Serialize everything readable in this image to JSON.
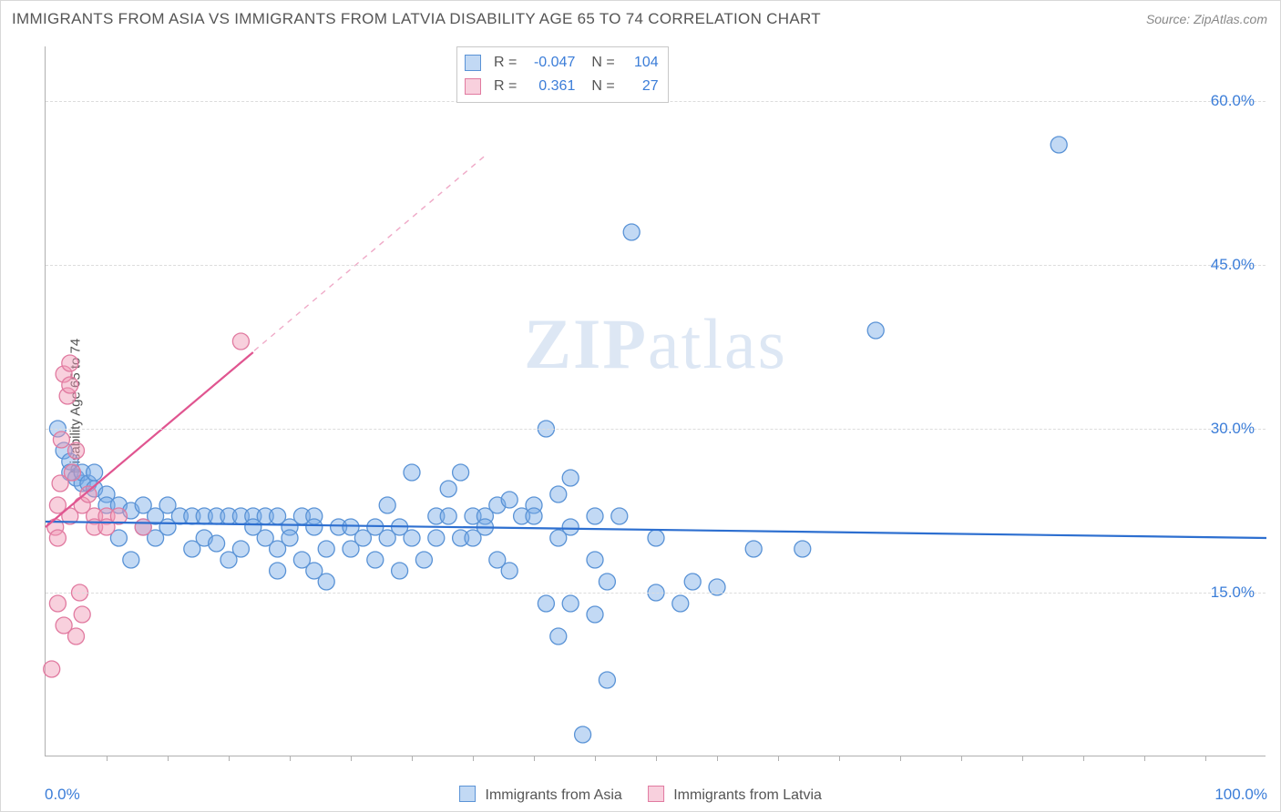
{
  "chart": {
    "type": "scatter",
    "title": "IMMIGRANTS FROM ASIA VS IMMIGRANTS FROM LATVIA DISABILITY AGE 65 TO 74 CORRELATION CHART",
    "source": "Source: ZipAtlas.com",
    "ylabel": "Disability Age 65 to 74",
    "watermark": "ZIPatlas",
    "background_color": "#ffffff",
    "grid_color": "#dcdcdc",
    "axis_color": "#b0b0b0",
    "text_color": "#555555",
    "value_color": "#3b7dd8",
    "xlim": [
      0,
      100
    ],
    "ylim": [
      0,
      65
    ],
    "x_end_labels": [
      "0.0%",
      "100.0%"
    ],
    "y_ticks": [
      15,
      30,
      45,
      60
    ],
    "y_tick_labels": [
      "15.0%",
      "30.0%",
      "45.0%",
      "60.0%"
    ],
    "x_minor_tick_step": 5,
    "marker_radius": 9,
    "marker_stroke_width": 1.3,
    "trend_line_width": 2.2,
    "series": [
      {
        "name": "Immigrants from Asia",
        "fill": "rgba(120,170,230,0.45)",
        "stroke": "#5a93d6",
        "line_color": "#2d6fd0",
        "r": -0.047,
        "n": 104,
        "trend": {
          "x1": 0,
          "y1": 21.5,
          "x2": 100,
          "y2": 20.0
        },
        "points": [
          [
            1,
            30
          ],
          [
            1.5,
            28
          ],
          [
            2,
            27
          ],
          [
            2,
            26
          ],
          [
            2.5,
            25.5
          ],
          [
            3,
            25
          ],
          [
            3,
            26
          ],
          [
            3.5,
            25
          ],
          [
            4,
            24.5
          ],
          [
            4,
            26
          ],
          [
            5,
            24
          ],
          [
            5,
            23
          ],
          [
            6,
            23
          ],
          [
            6,
            20
          ],
          [
            7,
            22.5
          ],
          [
            7,
            18
          ],
          [
            8,
            23
          ],
          [
            8,
            21
          ],
          [
            9,
            22
          ],
          [
            9,
            20
          ],
          [
            10,
            23
          ],
          [
            10,
            21
          ],
          [
            11,
            22
          ],
          [
            12,
            22
          ],
          [
            12,
            19
          ],
          [
            13,
            22
          ],
          [
            13,
            20
          ],
          [
            14,
            22
          ],
          [
            14,
            19.5
          ],
          [
            15,
            22
          ],
          [
            15,
            18
          ],
          [
            16,
            22
          ],
          [
            16,
            19
          ],
          [
            17,
            22
          ],
          [
            17,
            21
          ],
          [
            18,
            22
          ],
          [
            18,
            20
          ],
          [
            19,
            22
          ],
          [
            19,
            19
          ],
          [
            19,
            17
          ],
          [
            20,
            21
          ],
          [
            20,
            20
          ],
          [
            21,
            22
          ],
          [
            21,
            18
          ],
          [
            22,
            22
          ],
          [
            22,
            21
          ],
          [
            22,
            17
          ],
          [
            23,
            19
          ],
          [
            23,
            16
          ],
          [
            24,
            21
          ],
          [
            25,
            21
          ],
          [
            25,
            19
          ],
          [
            26,
            20
          ],
          [
            27,
            21
          ],
          [
            27,
            18
          ],
          [
            28,
            23
          ],
          [
            28,
            20
          ],
          [
            29,
            21
          ],
          [
            29,
            17
          ],
          [
            30,
            26
          ],
          [
            30,
            20
          ],
          [
            31,
            18
          ],
          [
            32,
            22
          ],
          [
            32,
            20
          ],
          [
            33,
            24.5
          ],
          [
            33,
            22
          ],
          [
            34,
            26
          ],
          [
            34,
            20
          ],
          [
            35,
            22
          ],
          [
            35,
            20
          ],
          [
            36,
            22
          ],
          [
            36,
            21
          ],
          [
            37,
            23
          ],
          [
            37,
            18
          ],
          [
            38,
            23.5
          ],
          [
            38,
            17
          ],
          [
            39,
            22
          ],
          [
            40,
            23
          ],
          [
            40,
            22
          ],
          [
            41,
            30
          ],
          [
            41,
            14
          ],
          [
            42,
            24
          ],
          [
            42,
            20
          ],
          [
            42,
            11
          ],
          [
            43,
            25.5
          ],
          [
            43,
            21
          ],
          [
            43,
            14
          ],
          [
            44,
            2
          ],
          [
            45,
            22
          ],
          [
            45,
            18
          ],
          [
            45,
            13
          ],
          [
            46,
            16
          ],
          [
            46,
            7
          ],
          [
            47,
            22
          ],
          [
            48,
            48
          ],
          [
            50,
            20
          ],
          [
            50,
            15
          ],
          [
            52,
            14
          ],
          [
            53,
            16
          ],
          [
            55,
            15.5
          ],
          [
            58,
            19
          ],
          [
            62,
            19
          ],
          [
            68,
            39
          ],
          [
            83,
            56
          ]
        ]
      },
      {
        "name": "Immigrants from Latvia",
        "fill": "rgba(240,150,180,0.45)",
        "stroke": "#e17aa0",
        "line_color": "#e05590",
        "dashed_extend": true,
        "r": 0.361,
        "n": 27,
        "trend": {
          "x1": 0,
          "y1": 21,
          "x2": 17,
          "y2": 37
        },
        "points": [
          [
            0.5,
            8
          ],
          [
            0.8,
            21
          ],
          [
            1,
            23
          ],
          [
            1,
            20
          ],
          [
            1,
            14
          ],
          [
            1.2,
            25
          ],
          [
            1.3,
            29
          ],
          [
            1.5,
            35
          ],
          [
            1.5,
            12
          ],
          [
            1.8,
            33
          ],
          [
            2,
            36
          ],
          [
            2,
            34
          ],
          [
            2,
            22
          ],
          [
            2.2,
            26
          ],
          [
            2.5,
            28
          ],
          [
            2.5,
            11
          ],
          [
            2.8,
            15
          ],
          [
            3,
            23
          ],
          [
            3,
            13
          ],
          [
            3.5,
            24
          ],
          [
            4,
            22
          ],
          [
            4,
            21
          ],
          [
            5,
            22
          ],
          [
            5,
            21
          ],
          [
            6,
            22
          ],
          [
            8,
            21
          ],
          [
            16,
            38
          ]
        ]
      }
    ],
    "legend_labels": [
      "Immigrants from Asia",
      "Immigrants from Latvia"
    ]
  }
}
